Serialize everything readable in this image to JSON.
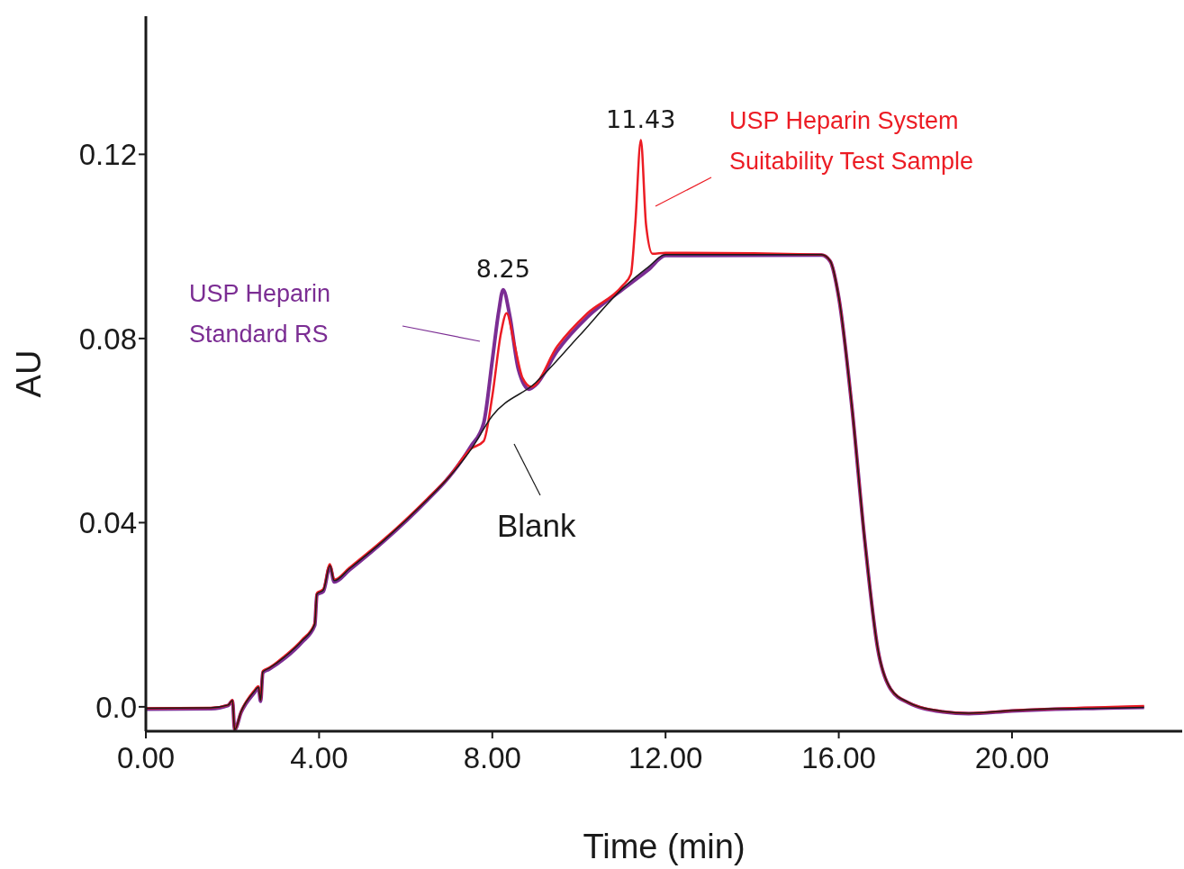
{
  "chart_data": {
    "type": "line",
    "xlabel": "Time (min)",
    "ylabel": "AU",
    "xlim": [
      0,
      23.93
    ],
    "ylim": [
      -0.0053,
      0.15
    ],
    "xticks": [
      {
        "value": 0,
        "label": "0.00"
      },
      {
        "value": 4,
        "label": "4.00"
      },
      {
        "value": 8,
        "label": "8.00"
      },
      {
        "value": 12,
        "label": "12.00"
      },
      {
        "value": 16,
        "label": "16.00"
      },
      {
        "value": 20,
        "label": "20.00"
      }
    ],
    "yticks": [
      {
        "value": 0,
        "label": "0.0"
      },
      0.04,
      0.08,
      0.12
    ],
    "annotations": [
      {
        "text": "8.25",
        "x": 8.25,
        "y": 0.0906
      },
      {
        "text": "11.43",
        "x": 11.43,
        "y": 0.1231
      }
    ],
    "series": [
      {
        "name": "Blank",
        "color": "#1a1a1a",
        "x": [
          0,
          1.5,
          1.9,
          2.0,
          2.05,
          2.2,
          2.5,
          2.6,
          2.65,
          2.7,
          2.85,
          3.2,
          3.6,
          3.9,
          3.95,
          4.1,
          4.25,
          4.35,
          4.7,
          5.5,
          6.5,
          7.0,
          7.5,
          8.0,
          9.0,
          10.0,
          11.0,
          11.6,
          12.0,
          15.6,
          15.8,
          16.0,
          16.3,
          16.6,
          16.9,
          17.2,
          17.6,
          18.4,
          19.0,
          20.0,
          21.0,
          22.0,
          23.05
        ],
        "values": [
          -0.0003,
          -0.0002,
          0.0004,
          0.0014,
          -0.005,
          -0.001,
          0.0033,
          0.0043,
          0.0014,
          0.0076,
          0.0084,
          0.0108,
          0.0143,
          0.018,
          0.0245,
          0.0254,
          0.0307,
          0.0274,
          0.03,
          0.0362,
          0.045,
          0.0499,
          0.0558,
          0.0632,
          0.0704,
          0.0805,
          0.0908,
          0.0955,
          0.0982,
          0.0982,
          0.0969,
          0.089,
          0.0655,
          0.0362,
          0.0127,
          0.0039,
          0.001,
          -0.001,
          -0.0014,
          -0.0008,
          -0.0004,
          -0.0003,
          -0.0001
        ]
      },
      {
        "name": "USP Heparin Standard RS",
        "color": "#7b2d93",
        "x": [
          0,
          1.5,
          1.9,
          2.0,
          2.05,
          2.2,
          2.5,
          2.6,
          2.65,
          2.7,
          2.85,
          3.2,
          3.6,
          3.9,
          3.95,
          4.1,
          4.25,
          4.35,
          4.7,
          5.5,
          6.5,
          7.0,
          7.5,
          7.8,
          8.0,
          8.15,
          8.25,
          8.4,
          8.6,
          8.85,
          9.0,
          9.5,
          10.2,
          11.0,
          11.6,
          12.0,
          15.6,
          15.8,
          16.0,
          16.3,
          16.6,
          16.9,
          17.2,
          17.6,
          18.4,
          19.0,
          20.0,
          21.0,
          22.0,
          23.05
        ],
        "values": [
          -0.0005,
          -0.0004,
          0.0003,
          0.0013,
          -0.005,
          -0.0012,
          0.003,
          0.0041,
          0.0012,
          0.0074,
          0.0082,
          0.0105,
          0.014,
          0.0177,
          0.0243,
          0.0251,
          0.0305,
          0.0271,
          0.0297,
          0.036,
          0.0449,
          0.0499,
          0.0565,
          0.0616,
          0.0753,
          0.086,
          0.0906,
          0.0851,
          0.0734,
          0.069,
          0.0699,
          0.0773,
          0.0847,
          0.0906,
          0.0949,
          0.098,
          0.0981,
          0.0968,
          0.0889,
          0.0654,
          0.0361,
          0.0126,
          0.0038,
          0.0009,
          -0.0011,
          -0.0015,
          -0.0009,
          -0.0005,
          -0.0003,
          -0.0001
        ]
      },
      {
        "name": "USP Heparin System Suitability Test Sample",
        "color": "#ec1c24",
        "x": [
          0,
          1.5,
          1.9,
          2.0,
          2.05,
          2.2,
          2.5,
          2.6,
          2.65,
          2.7,
          2.85,
          3.2,
          3.6,
          3.9,
          3.95,
          4.1,
          4.25,
          4.35,
          4.7,
          5.5,
          6.5,
          7.0,
          7.5,
          7.8,
          8.0,
          8.2,
          8.33,
          8.5,
          8.7,
          8.9,
          9.5,
          10.2,
          11.0,
          11.2,
          11.3,
          11.43,
          11.55,
          11.7,
          12.0,
          15.6,
          15.8,
          16.0,
          16.3,
          16.6,
          16.9,
          17.2,
          17.6,
          18.4,
          19.0,
          20.0,
          21.0,
          22.0,
          23.05
        ],
        "values": [
          -0.0003,
          -0.0002,
          0.0004,
          0.0015,
          -0.005,
          -0.001,
          0.0035,
          0.0045,
          0.0015,
          0.0078,
          0.0085,
          0.011,
          0.0145,
          0.0182,
          0.0247,
          0.0256,
          0.031,
          0.0276,
          0.0302,
          0.0364,
          0.0452,
          0.05,
          0.056,
          0.0577,
          0.0675,
          0.0812,
          0.0855,
          0.0792,
          0.0714,
          0.0695,
          0.0783,
          0.0855,
          0.0914,
          0.094,
          0.1047,
          0.1231,
          0.1047,
          0.0984,
          0.0986,
          0.0982,
          0.0969,
          0.089,
          0.0655,
          0.0362,
          0.0127,
          0.0039,
          0.001,
          -0.001,
          -0.0014,
          -0.0008,
          -0.0004,
          -0.0001,
          0.0002
        ]
      }
    ]
  }
}
